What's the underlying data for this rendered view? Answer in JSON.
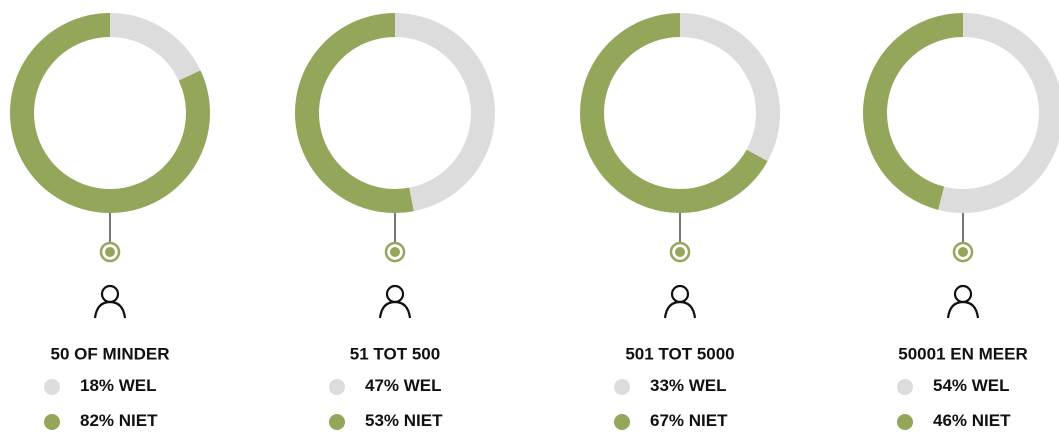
{
  "chart_data": [
    {
      "type": "donut",
      "title": "50 OF MINDER",
      "categories": [
        "WEL",
        "NIET"
      ],
      "values": [
        18,
        82
      ],
      "value_labels": [
        "18%",
        "82%"
      ],
      "colors": [
        "#dcdcdc",
        "#93a65a"
      ]
    },
    {
      "type": "donut",
      "title": "51 TOT 500",
      "categories": [
        "WEL",
        "NIET"
      ],
      "values": [
        47,
        53
      ],
      "value_labels": [
        "47%",
        "53%"
      ],
      "colors": [
        "#dcdcdc",
        "#93a65a"
      ]
    },
    {
      "type": "donut",
      "title": "501 TOT 5000",
      "categories": [
        "WEL",
        "NIET"
      ],
      "values": [
        33,
        67
      ],
      "value_labels": [
        "33%",
        "67%"
      ],
      "colors": [
        "#dcdcdc",
        "#93a65a"
      ]
    },
    {
      "type": "donut",
      "title": "50001 EN MEER",
      "categories": [
        "WEL",
        "NIET"
      ],
      "values": [
        54,
        46
      ],
      "value_labels": [
        "54%",
        "46%"
      ],
      "colors": [
        "#dcdcdc",
        "#93a65a"
      ]
    }
  ]
}
